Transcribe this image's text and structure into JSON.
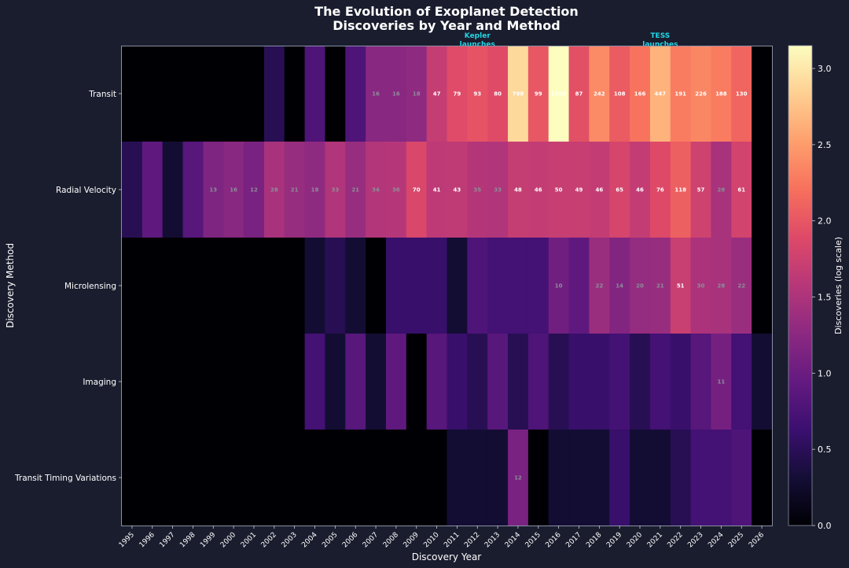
{
  "chart_data": {
    "type": "heatmap",
    "title_line1": "The Evolution of Exoplanet Detection",
    "title_line2": "Discoveries by Year and Method",
    "xlabel": "Discovery Year",
    "ylabel": "Discovery Method",
    "colorbar_label": "Discoveries (log scale)",
    "colorbar_ticks": [
      "0.0",
      "0.5",
      "1.0",
      "1.5",
      "2.0",
      "2.5",
      "3.0"
    ],
    "color_range": [
      0,
      3.15
    ],
    "years": [
      "1995",
      "1996",
      "1997",
      "1998",
      "1999",
      "2000",
      "2001",
      "2002",
      "2003",
      "2004",
      "2005",
      "2006",
      "2007",
      "2008",
      "2009",
      "2010",
      "2011",
      "2012",
      "2013",
      "2014",
      "2015",
      "2016",
      "2017",
      "2018",
      "2019",
      "2020",
      "2021",
      "2022",
      "2023",
      "2024",
      "2025",
      "2026"
    ],
    "methods": [
      "Transit",
      "Radial Velocity",
      "Microlensing",
      "Imaging",
      "Transit Timing Variations"
    ],
    "annotations": [
      {
        "year": "2012",
        "text_line1": "Kepler",
        "text_line2": "launches"
      },
      {
        "year": "2021",
        "text_line1": "TESS",
        "text_line2": "launches"
      }
    ],
    "values": [
      [
        0,
        0,
        0,
        0,
        0,
        0,
        0,
        2,
        0,
        5,
        0,
        5,
        16,
        16,
        18,
        47,
        79,
        93,
        80,
        798,
        99,
        1500,
        87,
        242,
        108,
        166,
        447,
        191,
        226,
        188,
        130,
        0
      ],
      [
        2,
        7,
        1,
        6,
        13,
        16,
        12,
        28,
        21,
        18,
        33,
        21,
        34,
        36,
        70,
        41,
        43,
        35,
        33,
        48,
        46,
        50,
        49,
        46,
        65,
        46,
        76,
        118,
        57,
        28,
        61,
        0
      ],
      [
        0,
        0,
        0,
        0,
        0,
        0,
        0,
        0,
        0,
        1,
        2,
        1,
        0,
        3,
        3,
        3,
        1,
        5,
        4,
        4,
        4,
        10,
        7,
        22,
        14,
        20,
        21,
        51,
        30,
        28,
        22,
        0
      ],
      [
        0,
        0,
        0,
        0,
        0,
        0,
        0,
        0,
        0,
        4,
        1,
        6,
        1,
        7,
        0,
        6,
        3,
        2,
        6,
        2,
        5,
        2,
        3,
        3,
        4,
        2,
        4,
        3,
        6,
        11,
        4,
        1
      ],
      [
        0,
        0,
        0,
        0,
        0,
        0,
        0,
        0,
        0,
        0,
        0,
        0,
        0,
        0,
        0,
        0,
        1,
        1,
        1,
        12,
        0,
        1,
        1,
        1,
        3,
        1,
        1,
        2,
        4,
        4,
        5,
        0
      ]
    ],
    "cell_labels": [
      [
        "",
        "",
        "",
        "",
        "",
        "",
        "",
        "",
        "",
        "",
        "",
        "",
        "16",
        "16",
        "18",
        "47",
        "79",
        "93",
        "80",
        "798",
        "99",
        "1500",
        "87",
        "242",
        "108",
        "166",
        "447",
        "191",
        "226",
        "188",
        "130",
        ""
      ],
      [
        "",
        "",
        "",
        "",
        "13",
        "16",
        "12",
        "28",
        "21",
        "18",
        "33",
        "21",
        "34",
        "36",
        "70",
        "41",
        "43",
        "35",
        "33",
        "48",
        "46",
        "50",
        "49",
        "46",
        "65",
        "46",
        "76",
        "118",
        "57",
        "28",
        "61",
        ""
      ],
      [
        "",
        "",
        "",
        "",
        "",
        "",
        "",
        "",
        "",
        "",
        "",
        "",
        "",
        "",
        "",
        "",
        "",
        "",
        "",
        "",
        "",
        "10",
        "",
        "22",
        "14",
        "20",
        "21",
        "51",
        "30",
        "28",
        "22",
        ""
      ],
      [
        "",
        "",
        "",
        "",
        "",
        "",
        "",
        "",
        "",
        "",
        "",
        "",
        "",
        "",
        "",
        "",
        "",
        "",
        "",
        "",
        "",
        "",
        "",
        "",
        "",
        "",
        "",
        "",
        "",
        "11",
        "",
        ""
      ],
      [
        "",
        "",
        "",
        "",
        "",
        "",
        "",
        "",
        "",
        "",
        "",
        "",
        "",
        "",
        "",
        "",
        "",
        "",
        "",
        "12",
        "",
        "",
        "",
        "",
        "",
        "",
        "",
        "",
        "",
        "",
        "",
        ""
      ]
    ],
    "label_threshold": 40
  }
}
